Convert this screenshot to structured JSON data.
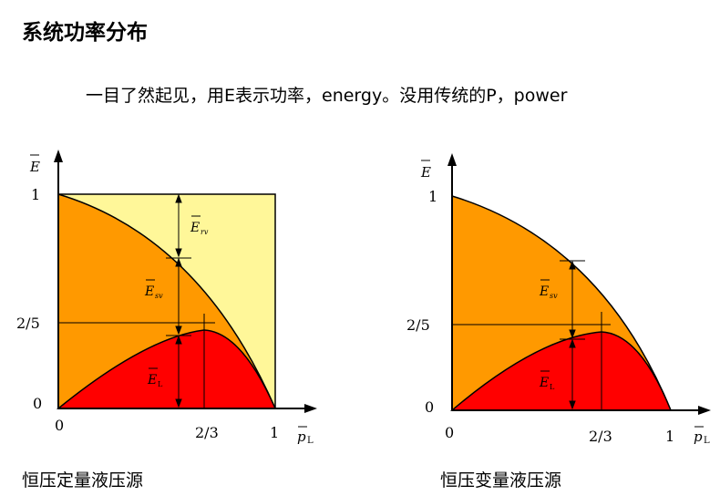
{
  "title": "系统功率分布",
  "subtitle": "一目了然起见，用E表示功率，energy。没用传统的P，power",
  "colors": {
    "constant_pressure_fill": "#fff799",
    "total_power_fill": "#ff9900",
    "load_power_fill": "#ff0000",
    "line": "#000000"
  },
  "figures": [
    {
      "caption": "恒压定量液压源",
      "y_axis_label": "E",
      "x_axis_label_main": "p",
      "x_axis_label_sub": "L",
      "tick_y_top": "1",
      "tick_y_mid": "2/5",
      "tick_y_zero": "0",
      "tick_x_zero": "0",
      "tick_x_mid": "2/3",
      "tick_x_one": "1",
      "region_labels": [
        {
          "main": "E",
          "sub": "rv"
        },
        {
          "main": "E",
          "sub": "sv"
        },
        {
          "main": "E",
          "sub": "L"
        }
      ]
    },
    {
      "caption": "恒压变量液压源",
      "y_axis_label": "E",
      "x_axis_label_main": "p",
      "x_axis_label_sub": "L",
      "tick_y_top": "1",
      "tick_y_mid": "2/5",
      "tick_y_zero": "0",
      "tick_x_zero": "0",
      "tick_x_mid": "2/3",
      "tick_x_one": "1",
      "region_labels": [
        {
          "main": "E",
          "sub": "sv"
        },
        {
          "main": "E",
          "sub": "L"
        }
      ]
    }
  ]
}
